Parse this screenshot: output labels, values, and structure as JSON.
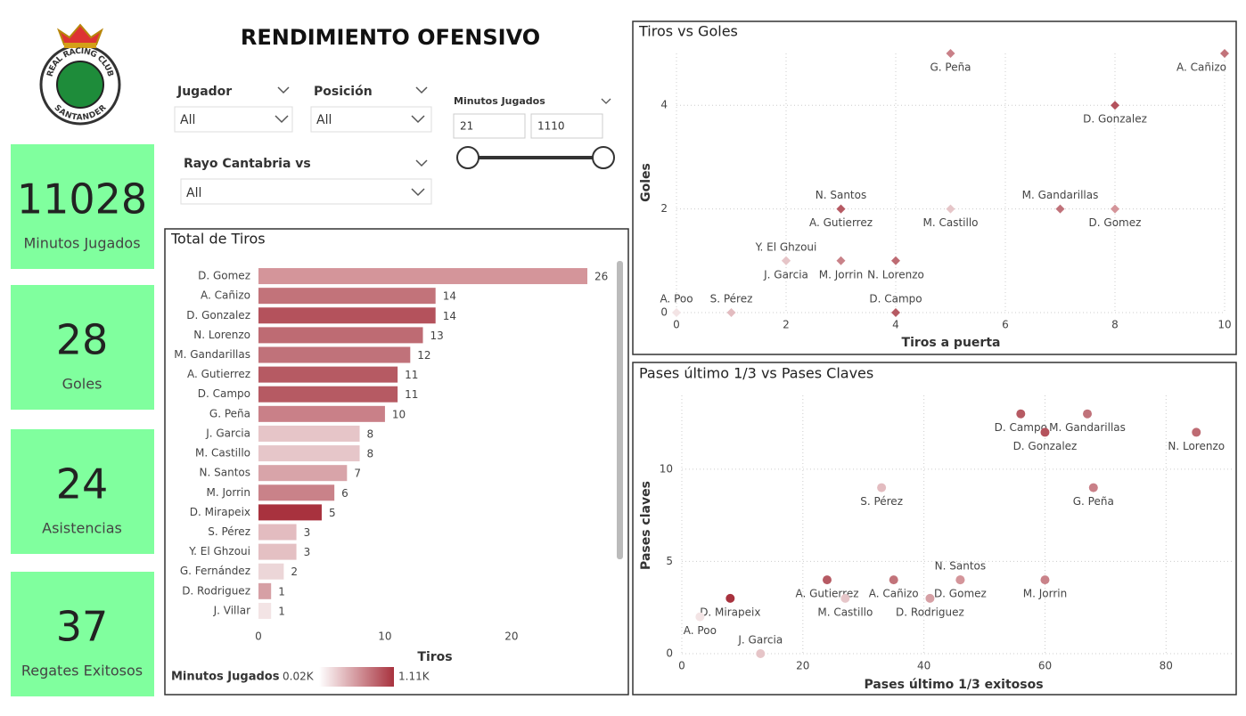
{
  "header": {
    "title": "RENDIMIENTO OFENSIVO",
    "logo": {
      "top": "REAL RACING CLUB",
      "bottom": "SANTANDER"
    }
  },
  "kpis": [
    {
      "value": "11028",
      "label": "Minutos Jugados"
    },
    {
      "value": "28",
      "label": "Goles"
    },
    {
      "value": "24",
      "label": "Asistencias"
    },
    {
      "value": "37",
      "label": "Regates Exitosos"
    }
  ],
  "filters": {
    "jugador": {
      "label": "Jugador",
      "value": "All"
    },
    "posicion": {
      "label": "Posición",
      "value": "All"
    },
    "rival": {
      "label": "Rayo Cantabria vs",
      "value": "All"
    },
    "minutos": {
      "label": "Minutos Jugados",
      "min": "21",
      "max": "1110"
    }
  },
  "chart_data": [
    {
      "type": "hbar",
      "title": "Total de Tiros",
      "x_label": "Tiros",
      "categories": [
        "D. Gomez",
        "A. Cañizo",
        "D. Gonzalez",
        "N. Lorenzo",
        "M. Gandarillas",
        "A. Gutierrez",
        "D. Campo",
        "G. Peña",
        "J. Garcia",
        "M. Castillo",
        "N. Santos",
        "M. Jorrin",
        "D. Mirapeix",
        "S. Pérez",
        "Y. El Ghzoui",
        "G. Fernández",
        "D. Rodriguez",
        "J. Villar"
      ],
      "values": [
        26,
        14,
        14,
        13,
        12,
        11,
        11,
        10,
        8,
        8,
        7,
        6,
        5,
        3,
        3,
        2,
        1,
        1
      ],
      "colors": [
        "#d4959a",
        "#c2737a",
        "#b4525c",
        "#be6b73",
        "#c0727a",
        "#b65a63",
        "#b65a63",
        "#c98088",
        "#e6c5c8",
        "#e6c6c9",
        "#d8a4a9",
        "#c98289",
        "#a8323e",
        "#e3bcc0",
        "#e4c0c3",
        "#ecd6d8",
        "#d6a0a5",
        "#f3e4e5"
      ],
      "xlim": [
        0,
        26
      ],
      "xticks": [
        0,
        10,
        20
      ],
      "grid": false,
      "legend": {
        "title": "Minutos Jugados",
        "min_label": "0.02K",
        "max_label": "1.11K",
        "colors": [
          "#ffffff",
          "#a8323e"
        ]
      }
    },
    {
      "type": "scatter",
      "title": "Tiros vs Goles",
      "x_label": "Tiros a puerta",
      "y_label": "Goles",
      "marker": "diamond",
      "labels": [
        "G. Peña",
        "A. Cañizo",
        "D. Gonzalez",
        "N. Santos",
        "A. Gutierrez",
        "M. Castillo",
        "M. Gandarillas",
        "D. Gomez",
        "Y. El Ghzoui",
        "J. Garcia",
        "M. Jorrin",
        "N. Lorenzo",
        "D. Campo",
        "A. Poo",
        "S. Pérez"
      ],
      "x": [
        5,
        10,
        8,
        3,
        3,
        5,
        7,
        8,
        2,
        2,
        3,
        4,
        4,
        0,
        1
      ],
      "values": [
        5,
        5,
        4,
        2,
        2,
        2,
        2,
        2,
        1,
        1,
        1,
        1,
        0,
        0,
        0
      ],
      "colors": [
        "#c98088",
        "#c2737a",
        "#b4525c",
        "#d8a4a9",
        "#b65a63",
        "#e6c6c9",
        "#c0727a",
        "#d4959a",
        "#e4c0c3",
        "#e6c5c8",
        "#c98289",
        "#be6b73",
        "#b65a63",
        "#f3e4e5",
        "#e3bcc0"
      ],
      "xlim": [
        0,
        10
      ],
      "ylim": [
        0,
        5
      ],
      "xticks": [
        0,
        2,
        4,
        6,
        8,
        10
      ],
      "yticks": [
        0,
        2,
        4
      ],
      "grid": true
    },
    {
      "type": "scatter",
      "title": "Pases último 1/3 vs Pases Claves",
      "x_label": "Pases último 1/3 exitosos",
      "y_label": "Pases claves",
      "marker": "circle",
      "labels": [
        "D. Campo",
        "M. Gandarillas",
        "D. Gonzalez",
        "N. Lorenzo",
        "S. Pérez",
        "G. Peña",
        "N. Santos",
        "D. Gomez",
        "M. Jorrin",
        "A. Gutierrez",
        "A. Cañizo",
        "M. Castillo",
        "D. Rodriguez",
        "D. Mirapeix",
        "A. Poo",
        "J. Garcia"
      ],
      "x": [
        56,
        67,
        60,
        85,
        33,
        68,
        46,
        46,
        60,
        24,
        35,
        27,
        41,
        8,
        3,
        13
      ],
      "values": [
        13,
        13,
        12,
        12,
        9,
        9,
        4,
        4,
        4,
        4,
        4,
        3,
        3,
        3,
        2,
        0
      ],
      "colors": [
        "#b65a63",
        "#c0727a",
        "#b4525c",
        "#be6b73",
        "#e3bcc0",
        "#c98088",
        "#d8a4a9",
        "#d4959a",
        "#c98289",
        "#b65a63",
        "#c2737a",
        "#e6c6c9",
        "#d6a0a5",
        "#a8323e",
        "#f3e4e5",
        "#e6c5c8"
      ],
      "xlim": [
        0,
        91
      ],
      "ylim": [
        0,
        14
      ],
      "xticks": [
        0,
        20,
        40,
        60,
        80
      ],
      "yticks": [
        0,
        5,
        10
      ],
      "grid": true
    }
  ]
}
